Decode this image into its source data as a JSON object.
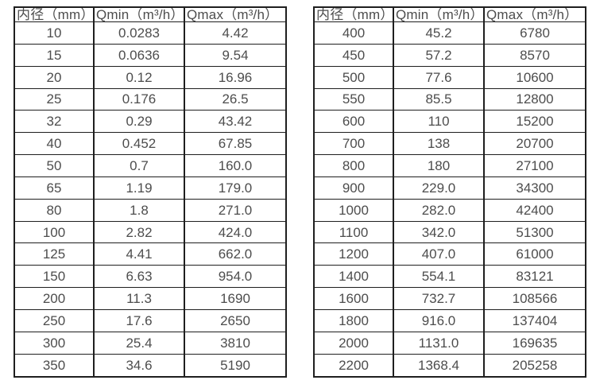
{
  "page": {
    "background_color": "#ffffff",
    "border_color": "#1f1f1f",
    "text_color": "#4d4d4d"
  },
  "chart_data": [
    {
      "type": "table",
      "title": "",
      "headers": [
        "内径（mm）",
        "Qmin（m³/h）",
        "Qmax（m³/h）"
      ],
      "rows": [
        [
          "10",
          "0.0283",
          "4.42"
        ],
        [
          "15",
          "0.0636",
          "9.54"
        ],
        [
          "20",
          "0.12",
          "16.96"
        ],
        [
          "25",
          "0.176",
          "26.5"
        ],
        [
          "32",
          "0.29",
          "43.42"
        ],
        [
          "40",
          "0.452",
          "67.85"
        ],
        [
          "50",
          "0.7",
          "160.0"
        ],
        [
          "65",
          "1.19",
          "179.0"
        ],
        [
          "80",
          "1.8",
          "271.0"
        ],
        [
          "100",
          "2.82",
          "424.0"
        ],
        [
          "125",
          "4.41",
          "662.0"
        ],
        [
          "150",
          "6.63",
          "954.0"
        ],
        [
          "200",
          "11.3",
          "1690"
        ],
        [
          "250",
          "17.6",
          "2650"
        ],
        [
          "300",
          "25.4",
          "3810"
        ],
        [
          "350",
          "34.6",
          "5190"
        ]
      ]
    },
    {
      "type": "table",
      "title": "",
      "headers": [
        "内径（mm）",
        "Qmin（m³/h）",
        "Qmax（m³/h）"
      ],
      "rows": [
        [
          "400",
          "45.2",
          "6780"
        ],
        [
          "450",
          "57.2",
          "8570"
        ],
        [
          "500",
          "77.6",
          "10600"
        ],
        [
          "550",
          "85.5",
          "12800"
        ],
        [
          "600",
          "110",
          "15200"
        ],
        [
          "700",
          "138",
          "20700"
        ],
        [
          "800",
          "180",
          "27100"
        ],
        [
          "900",
          "229.0",
          "34300"
        ],
        [
          "1000",
          "282.0",
          "42400"
        ],
        [
          "1100",
          "342.0",
          "51300"
        ],
        [
          "1200",
          "407.0",
          "61000"
        ],
        [
          "1400",
          "554.1",
          "83121"
        ],
        [
          "1600",
          "732.7",
          "108566"
        ],
        [
          "1800",
          "916.0",
          "137404"
        ],
        [
          "2000",
          "1131.0",
          "169635"
        ],
        [
          "2200",
          "1368.4",
          "205258"
        ]
      ]
    }
  ]
}
